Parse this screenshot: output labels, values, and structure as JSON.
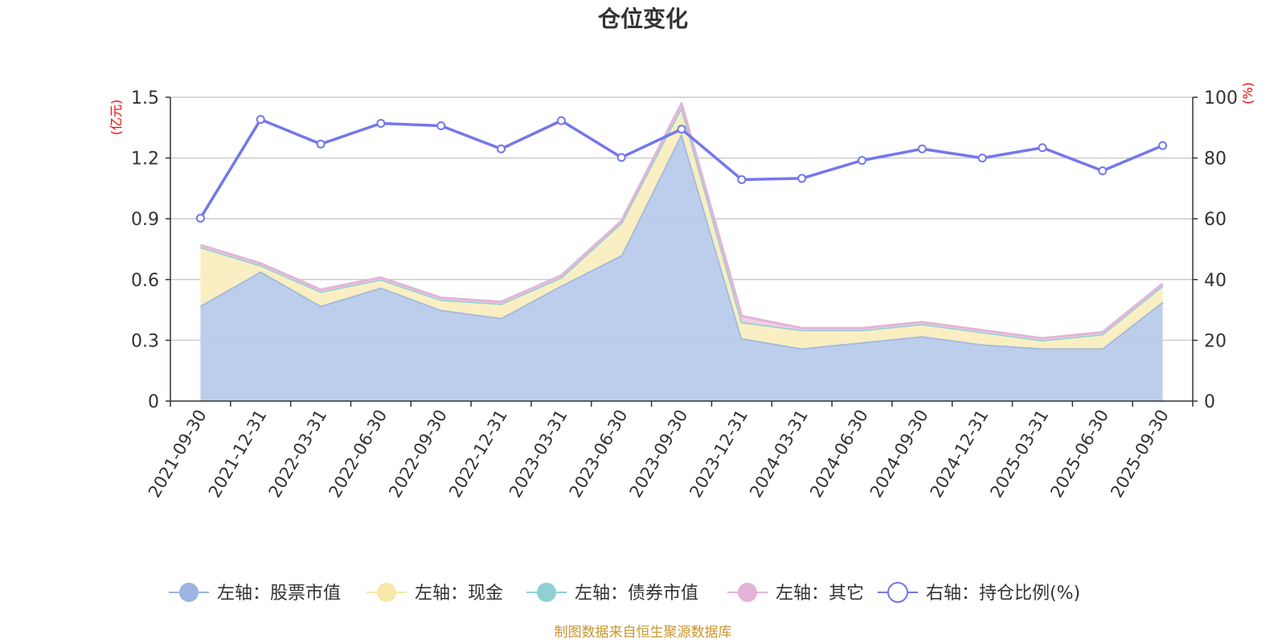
{
  "chart_data": {
    "type": "area",
    "title": "仓位变化",
    "categories": [
      "2021-09-30",
      "2021-12-31",
      "2022-03-31",
      "2022-06-30",
      "2022-09-30",
      "2022-12-31",
      "2023-03-31",
      "2023-06-30",
      "2023-09-30",
      "2023-12-31",
      "2024-03-31",
      "2024-06-30",
      "2024-09-30",
      "2024-12-31",
      "2025-03-31",
      "2025-06-30",
      "2025-09-30"
    ],
    "left_axis": {
      "unit": "(亿元)",
      "ylim": [
        0,
        1.5
      ],
      "ticks": [
        "0",
        "0.3",
        "0.6",
        "0.9",
        "1.2",
        "1.5"
      ]
    },
    "right_axis": {
      "unit": "(%)",
      "ylim": [
        0,
        100
      ],
      "ticks": [
        "0",
        "20",
        "40",
        "60",
        "80",
        "100"
      ]
    },
    "series": [
      {
        "name": "左轴：股票市值",
        "axis": "left",
        "kind": "stacked-area",
        "color": "#9bb5e0",
        "fill": "#b8cbea",
        "values": [
          0.47,
          0.64,
          0.47,
          0.56,
          0.45,
          0.41,
          0.57,
          0.72,
          1.32,
          0.31,
          0.26,
          0.29,
          0.32,
          0.28,
          0.26,
          0.26,
          0.49
        ]
      },
      {
        "name": "左轴：现金",
        "axis": "left",
        "kind": "stacked-area",
        "color": "#f6e8a8",
        "fill": "#faeec0",
        "values": [
          0.29,
          0.03,
          0.07,
          0.04,
          0.05,
          0.07,
          0.04,
          0.16,
          0.13,
          0.08,
          0.09,
          0.06,
          0.06,
          0.06,
          0.04,
          0.07,
          0.08
        ]
      },
      {
        "name": "左轴：债券市值",
        "axis": "left",
        "kind": "stacked-area",
        "color": "#8fd0d2",
        "fill": "#b6e2e3",
        "values": [
          0,
          0,
          0,
          0,
          0,
          0,
          0,
          0,
          0,
          0,
          0,
          0,
          0,
          0,
          0,
          0,
          0
        ]
      },
      {
        "name": "左轴：其它",
        "axis": "left",
        "kind": "stacked-area",
        "color": "#e3b4d8",
        "fill": "#efcde6",
        "values": [
          0.01,
          0.01,
          0.01,
          0.01,
          0.01,
          0.01,
          0.01,
          0.01,
          0.02,
          0.03,
          0.01,
          0.01,
          0.01,
          0.01,
          0.01,
          0.01,
          0.01
        ]
      },
      {
        "name": "右轴：持仓比例(%)",
        "axis": "right",
        "kind": "line",
        "color": "#7377ec",
        "values": [
          60.2,
          92.7,
          84.6,
          91.4,
          90.6,
          83.0,
          92.3,
          80.2,
          89.5,
          72.9,
          73.3,
          79.2,
          83.0,
          80.0,
          83.4,
          75.8,
          84.1
        ]
      }
    ],
    "grid": true,
    "legend_position": "bottom",
    "source": "制图数据来自恒生聚源数据库"
  }
}
